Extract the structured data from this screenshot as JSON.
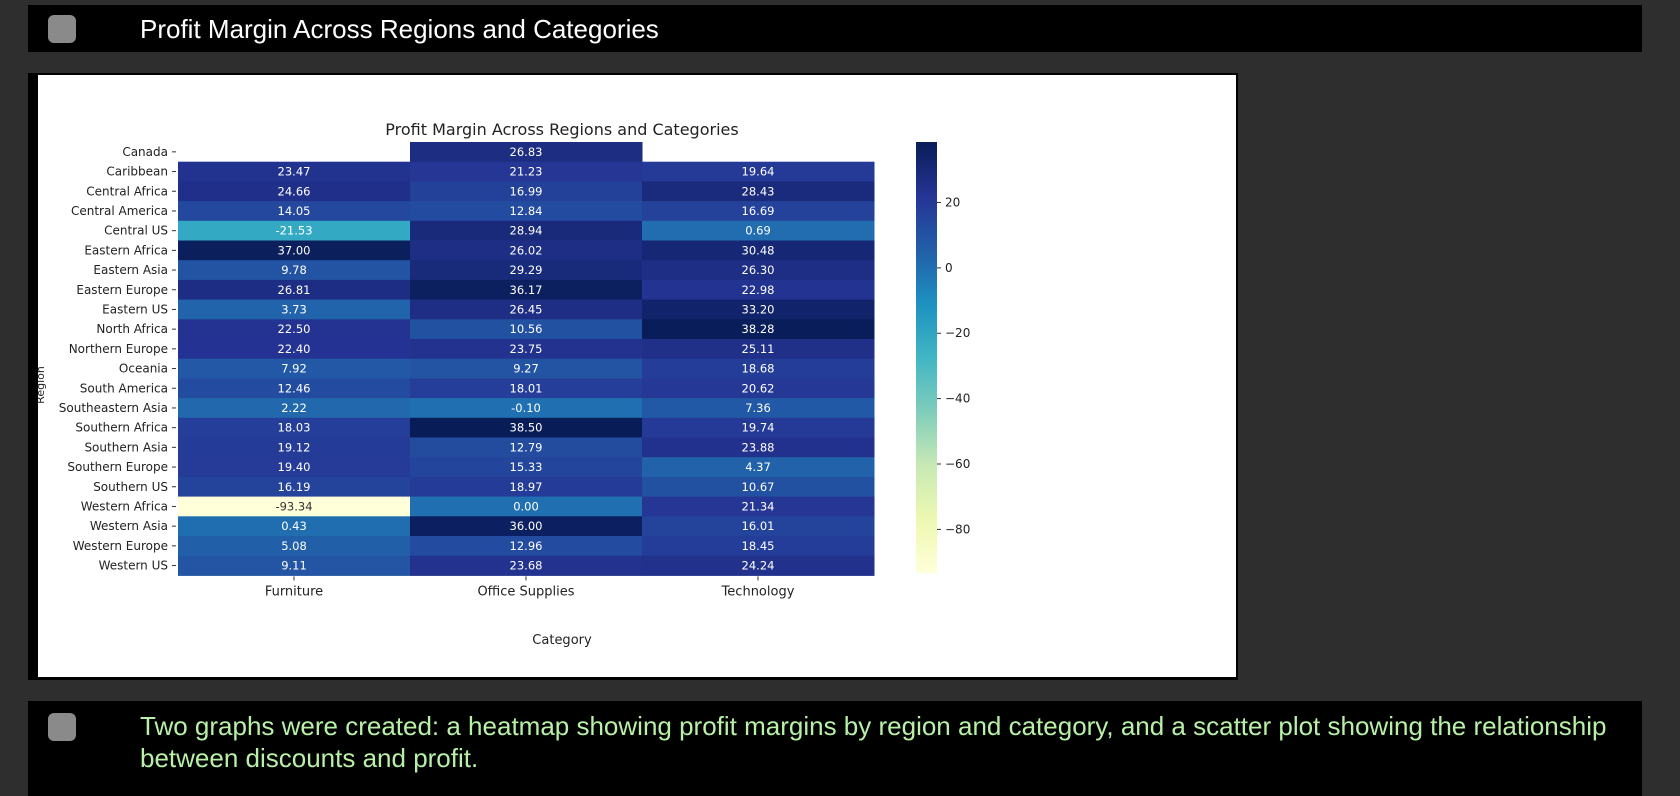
{
  "header": {
    "title": "Profit Margin Across Regions and Categories"
  },
  "footer": {
    "text": "Two graphs were created: a heatmap showing profit margins by region and category, and a scatter plot showing the relationship between discounts and profit."
  },
  "chart_data": {
    "type": "heatmap",
    "title": "Profit Margin Across Regions and Categories",
    "xlabel": "Category",
    "ylabel": "Region",
    "categories": [
      "Furniture",
      "Office Supplies",
      "Technology"
    ],
    "rows": [
      "Canada",
      "Caribbean",
      "Central Africa",
      "Central America",
      "Central US",
      "Eastern Africa",
      "Eastern Asia",
      "Eastern Europe",
      "Eastern US",
      "North Africa",
      "Northern Europe",
      "Oceania",
      "South America",
      "Southeastern Asia",
      "Southern Africa",
      "Southern Asia",
      "Southern Europe",
      "Southern US",
      "Western Africa",
      "Western Asia",
      "Western Europe",
      "Western US"
    ],
    "values": [
      [
        null,
        26.83,
        null
      ],
      [
        23.47,
        21.23,
        19.64
      ],
      [
        24.66,
        16.99,
        28.43
      ],
      [
        14.05,
        12.84,
        16.69
      ],
      [
        -21.53,
        28.94,
        0.69
      ],
      [
        37.0,
        26.02,
        30.48
      ],
      [
        9.78,
        29.29,
        26.3
      ],
      [
        26.81,
        36.17,
        22.98
      ],
      [
        3.73,
        26.45,
        33.2
      ],
      [
        22.5,
        10.56,
        38.28
      ],
      [
        22.4,
        23.75,
        25.11
      ],
      [
        7.92,
        9.27,
        18.68
      ],
      [
        12.46,
        18.01,
        20.62
      ],
      [
        2.22,
        -0.1,
        7.36
      ],
      [
        18.03,
        38.5,
        19.74
      ],
      [
        19.12,
        12.79,
        23.88
      ],
      [
        19.4,
        15.33,
        4.37
      ],
      [
        16.19,
        18.97,
        10.67
      ],
      [
        -93.34,
        0.0,
        21.34
      ],
      [
        0.43,
        36.0,
        16.01
      ],
      [
        5.08,
        12.96,
        18.45
      ],
      [
        9.11,
        23.68,
        24.24
      ]
    ],
    "colormap": "YlGnBu",
    "vmin": -93.34,
    "vmax": 38.5,
    "colorbar_ticks": [
      20,
      0,
      -20,
      -40,
      -60,
      -80
    ]
  }
}
